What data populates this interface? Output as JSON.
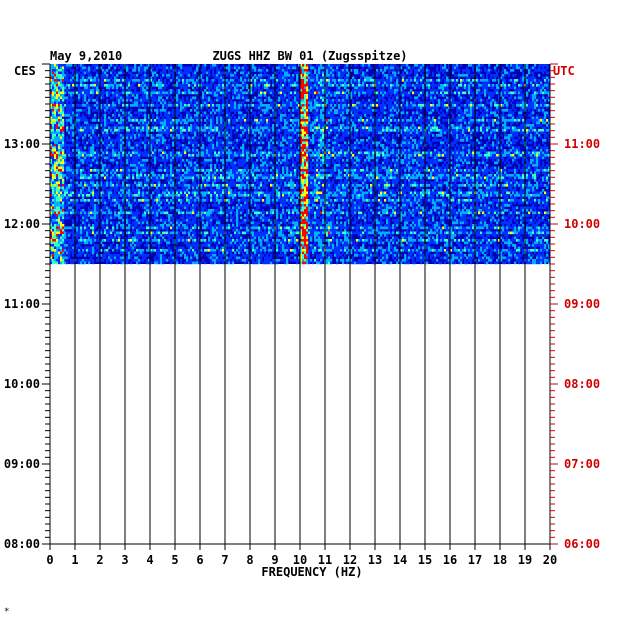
{
  "header": {
    "date": "May 9,2010",
    "station": "ZUGS HHZ BW 01 (Zugsspitze)",
    "left_zone": "CES",
    "right_zone": "UTC"
  },
  "footer_mark": "*",
  "chart_data": {
    "type": "heatmap",
    "title": "ZUGS HHZ BW 01 (Zugsspitze)",
    "date": "May 9,2010",
    "xlabel": "FREQUENCY (HZ)",
    "xlim": [
      0,
      20
    ],
    "x_ticks": [
      "0",
      "1",
      "2",
      "3",
      "4",
      "5",
      "6",
      "7",
      "8",
      "9",
      "10",
      "11",
      "12",
      "13",
      "14",
      "15",
      "16",
      "17",
      "18",
      "19",
      "20"
    ],
    "left_axis": {
      "zone": "CES",
      "ticks": [
        "08:00",
        "09:00",
        "10:00",
        "11:00",
        "12:00",
        "13:00"
      ],
      "range_hours": [
        8.0,
        14.0
      ]
    },
    "right_axis": {
      "zone": "UTC",
      "ticks": [
        "06:00",
        "07:00",
        "08:00",
        "09:00",
        "10:00",
        "11:00"
      ],
      "color": "#d00000"
    },
    "data_coverage_ces": [
      "11:30",
      "14:00"
    ],
    "dominant_band_hz": [
      10.0,
      10.3
    ],
    "colormap": [
      "#0000b4",
      "#0030ff",
      "#00b0ff",
      "#40ffc0",
      "#ffff00",
      "#ff0000"
    ],
    "grid": "vertical lines at each 1 Hz",
    "grid_color": "#000000"
  }
}
